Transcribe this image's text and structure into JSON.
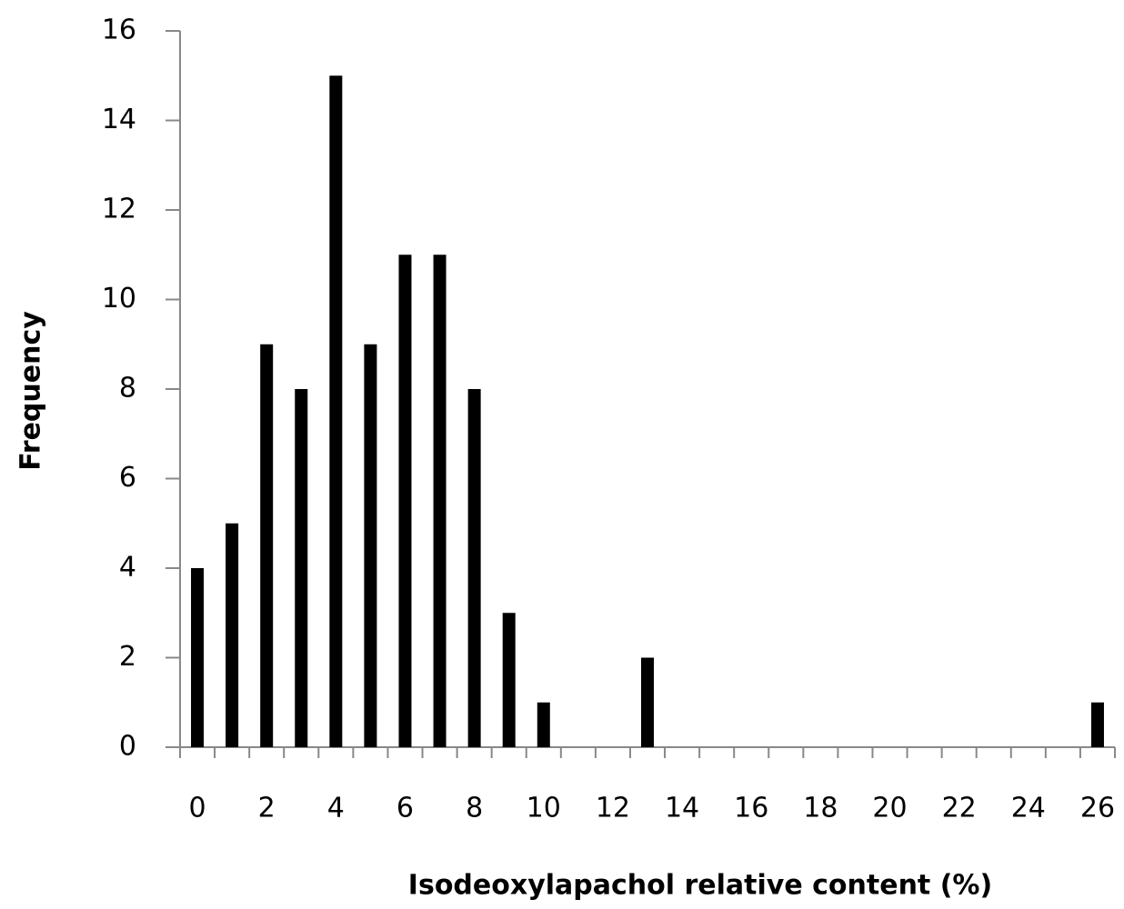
{
  "chart_data": {
    "type": "bar",
    "x_label": "Isodeoxylapachol relative content (%)",
    "y_label": "Frequency",
    "categories": [
      "0",
      null,
      "2",
      null,
      "4",
      null,
      "6",
      null,
      "8",
      null,
      "10",
      null,
      "12",
      null,
      "14",
      null,
      "16",
      null,
      "18",
      null,
      "20",
      null,
      "22",
      null,
      "24",
      null,
      "26"
    ],
    "values": [
      4,
      5,
      9,
      8,
      15,
      9,
      11,
      11,
      8,
      3,
      1,
      0,
      0,
      2,
      0,
      0,
      0,
      0,
      0,
      0,
      0,
      0,
      0,
      0,
      0,
      0,
      1
    ],
    "color": "#000000",
    "ylim": [
      0,
      16
    ],
    "yticks": [
      0,
      2,
      4,
      6,
      8,
      10,
      12,
      14,
      16
    ],
    "grid": false
  }
}
